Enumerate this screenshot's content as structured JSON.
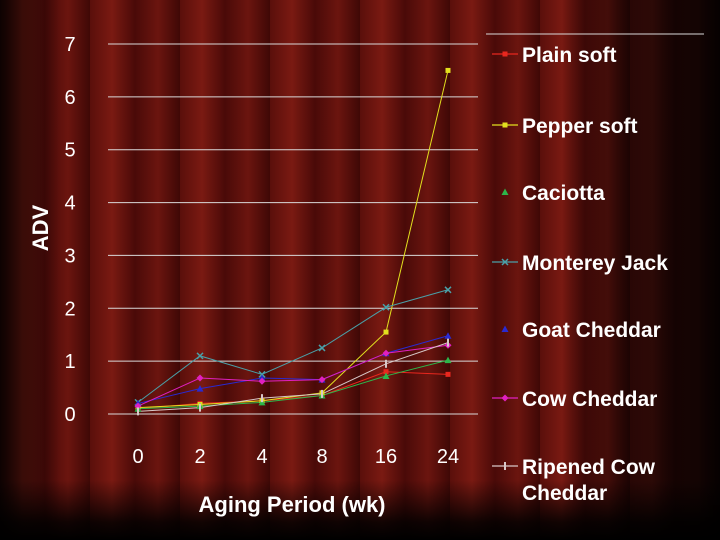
{
  "chart_data": {
    "type": "line",
    "title": "",
    "xlabel": "Aging Period (wk)",
    "ylabel": "ADV",
    "categories": [
      "0",
      "2",
      "4",
      "8",
      "16",
      "24"
    ],
    "ylim": [
      0,
      7
    ],
    "yticks": [
      "0",
      "1",
      "2",
      "3",
      "4",
      "5",
      "6",
      "7"
    ],
    "grid": "horizontal",
    "legend_position": "right",
    "series": [
      {
        "name": "Plain soft",
        "color": "#e8271e",
        "marker": "square",
        "values": [
          0.1,
          0.2,
          0.25,
          0.35,
          0.8,
          0.75
        ]
      },
      {
        "name": "Pepper soft",
        "color": "#e2e01f",
        "marker": "square",
        "values": [
          0.12,
          0.18,
          0.25,
          0.4,
          1.55,
          6.5
        ]
      },
      {
        "name": "Caciotta",
        "color": "#2db54a",
        "marker": "triangle",
        "values": [
          0.1,
          0.15,
          0.22,
          0.35,
          0.72,
          1.02
        ]
      },
      {
        "name": "Monterey Jack",
        "color": "#4aa0a8",
        "marker": "x",
        "values": [
          0.22,
          1.1,
          0.75,
          1.25,
          2.02,
          2.35
        ]
      },
      {
        "name": "Goat Cheddar",
        "color": "#2a2ad0",
        "marker": "triangle",
        "values": [
          0.2,
          0.48,
          0.68,
          0.65,
          1.15,
          1.48
        ]
      },
      {
        "name": "Cow Cheddar",
        "color": "#e020c0",
        "marker": "diamond",
        "values": [
          0.15,
          0.68,
          0.62,
          0.65,
          1.15,
          1.3
        ]
      },
      {
        "name": "Ripened Cow Cheddar",
        "color": "#d8c8c8",
        "marker": "bar",
        "values": [
          0.05,
          0.12,
          0.3,
          0.38,
          0.95,
          1.35
        ]
      }
    ]
  }
}
